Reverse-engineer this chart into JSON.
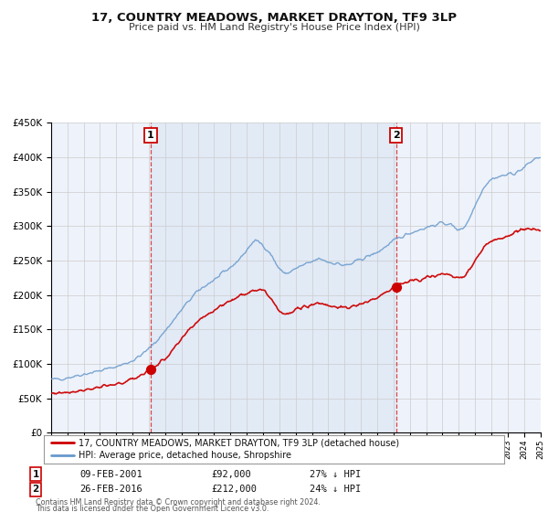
{
  "title": "17, COUNTRY MEADOWS, MARKET DRAYTON, TF9 3LP",
  "subtitle": "Price paid vs. HM Land Registry's House Price Index (HPI)",
  "legend_line1": "17, COUNTRY MEADOWS, MARKET DRAYTON, TF9 3LP (detached house)",
  "legend_line2": "HPI: Average price, detached house, Shropshire",
  "footnote1": "Contains HM Land Registry data © Crown copyright and database right 2024.",
  "footnote2": "This data is licensed under the Open Government Licence v3.0.",
  "sale1_date": "09-FEB-2001",
  "sale1_price": "£92,000",
  "sale1_hpi": "27% ↓ HPI",
  "sale1_year": 2001.11,
  "sale1_value": 92000,
  "sale2_date": "26-FEB-2016",
  "sale2_price": "£212,000",
  "sale2_hpi": "24% ↓ HPI",
  "sale2_year": 2016.15,
  "sale2_value": 212000,
  "red_color": "#cc0000",
  "blue_color": "#6699cc",
  "shade_color": "#dde8f5",
  "bg_color": "#eef2fa",
  "plot_bg": "#ffffff",
  "grid_color": "#cccccc",
  "xmin": 1995,
  "xmax": 2025,
  "ymin": 0,
  "ymax": 450000
}
